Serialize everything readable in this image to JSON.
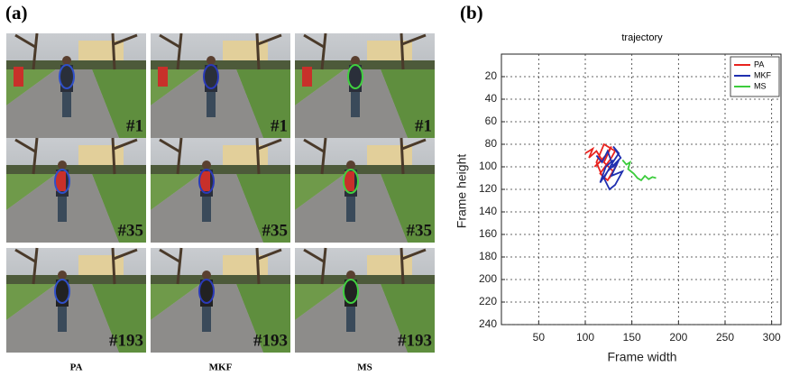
{
  "panel_a": {
    "label": "(a)",
    "columns": [
      "PA",
      "MKF",
      "MS"
    ],
    "frames": [
      "#1",
      "#35",
      "#193"
    ]
  },
  "chart_data": {
    "type": "line",
    "panel_label": "(b)",
    "title": "trajectory",
    "x_label": "Frame width",
    "y_label": "Frame height",
    "xlim": [
      10,
      310
    ],
    "xticks": [
      50,
      100,
      150,
      200,
      250,
      300
    ],
    "ylim": [
      0,
      240
    ],
    "yticks": [
      20,
      40,
      60,
      80,
      100,
      120,
      140,
      160,
      180,
      200,
      220,
      240
    ],
    "y_reversed": true,
    "grid": true,
    "legend": "top-right",
    "series": [
      {
        "name": "PA",
        "color": "#e8231f",
        "x": [
          100,
          108,
          104,
          112,
          118,
          110,
          122,
          128,
          120,
          130,
          126,
          134,
          124,
          116,
          128,
          132,
          120,
          112,
          118
        ],
        "values": [
          88,
          84,
          92,
          86,
          94,
          100,
          90,
          82,
          96,
          104,
          110,
          98,
          112,
          106,
          92,
          86,
          80,
          96,
          108
        ]
      },
      {
        "name": "MKF",
        "color": "#1f2fb0",
        "x": [
          112,
          118,
          124,
          130,
          136,
          128,
          140,
          132,
          126,
          120,
          128,
          136,
          130,
          138,
          124,
          116,
          122,
          130
        ],
        "values": [
          90,
          96,
          86,
          100,
          94,
          108,
          104,
          116,
          120,
          110,
          98,
          88,
          82,
          92,
          104,
          114,
          100,
          94
        ]
      },
      {
        "name": "MS",
        "color": "#3ccc3c",
        "x": [
          140,
          144,
          148,
          146,
          152,
          156,
          160,
          164,
          168,
          172,
          176
        ],
        "values": [
          94,
          98,
          96,
          102,
          106,
          110,
          112,
          108,
          111,
          109,
          110
        ]
      }
    ]
  }
}
